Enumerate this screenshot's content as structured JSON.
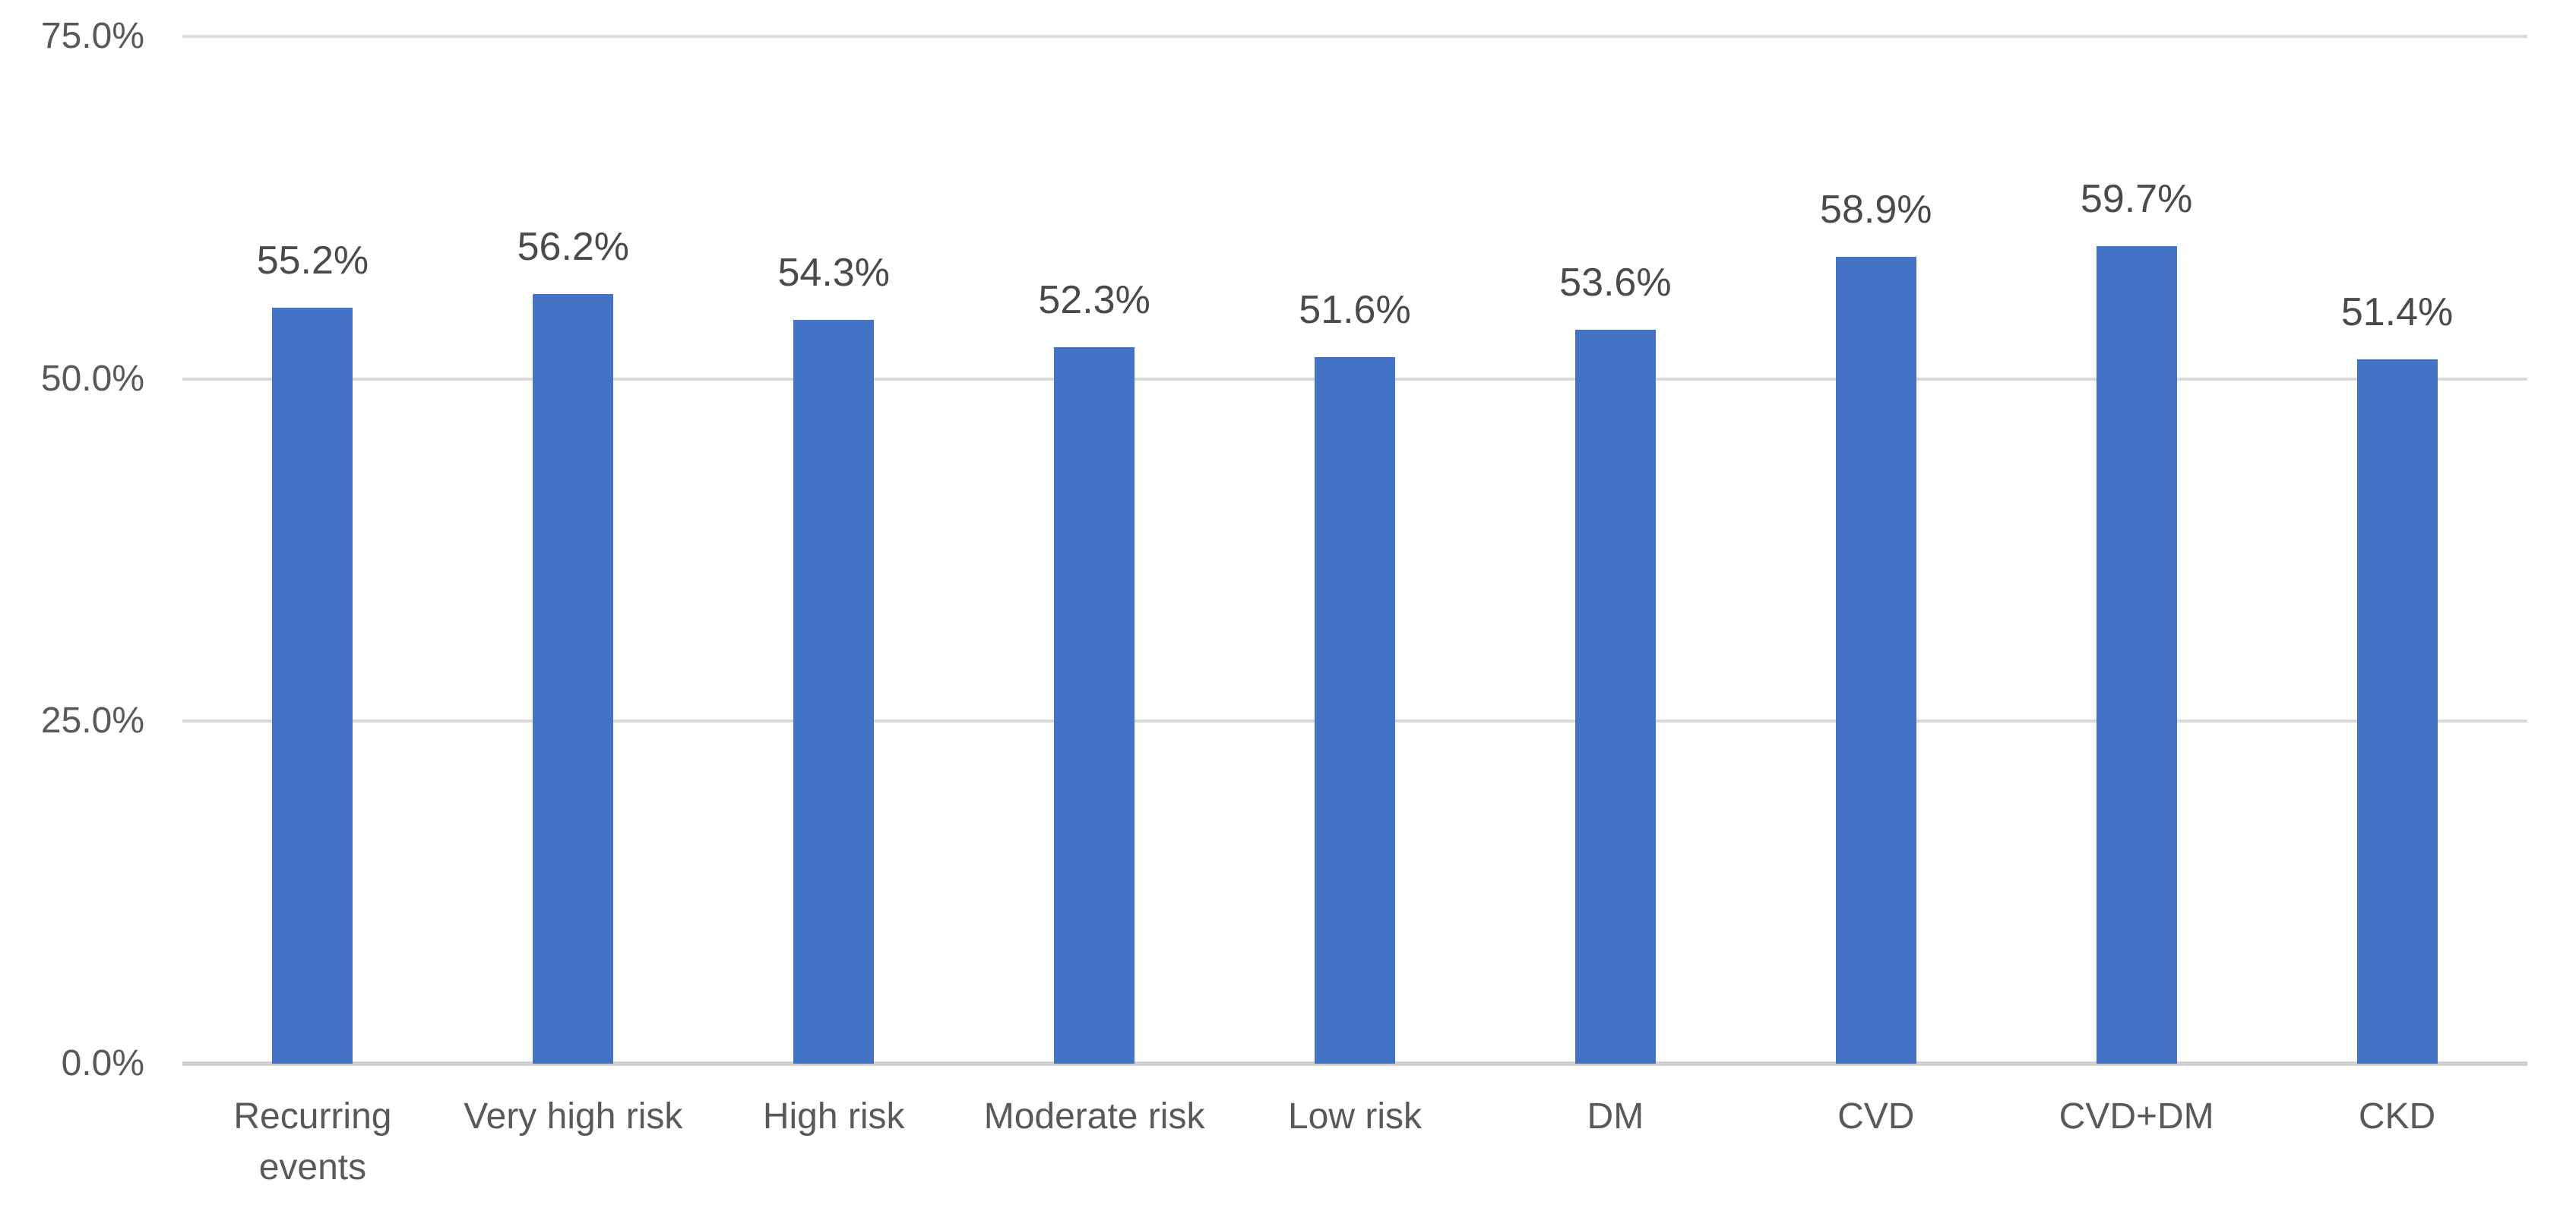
{
  "figure": {
    "background_color": "#ffffff"
  },
  "chart_data": {
    "type": "bar",
    "title": "",
    "categories": [
      "Recurring\nevents",
      "Very high risk",
      "High risk",
      "Moderate risk",
      "Low risk",
      "DM",
      "CVD",
      "CVD+DM",
      "CKD"
    ],
    "values": [
      55.2,
      56.2,
      54.3,
      52.3,
      51.6,
      53.6,
      58.9,
      59.7,
      51.4
    ],
    "value_labels": [
      "55.2%",
      "56.2%",
      "54.3%",
      "52.3%",
      "51.6%",
      "53.6%",
      "58.9%",
      "59.7%",
      "51.4%"
    ],
    "xlabel": "",
    "ylabel": "",
    "ylim": [
      0,
      75
    ],
    "yticks": [
      {
        "value": 0,
        "label": "0.0%"
      },
      {
        "value": 25,
        "label": "25.0%"
      },
      {
        "value": 50,
        "label": "50.0%"
      },
      {
        "value": 75,
        "label": "75.0%"
      }
    ],
    "grid": true,
    "legend": "none",
    "colors": {
      "bar_fill": "#4472C4",
      "gridline": "#DADADA",
      "axis_line": "#D2D0D0",
      "tick_text": "#595959",
      "data_label_text": "#4a4a4a",
      "category_text": "#595959"
    }
  }
}
